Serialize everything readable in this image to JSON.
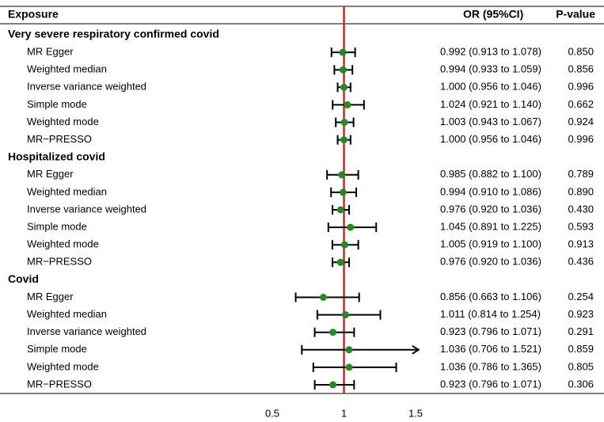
{
  "chart_data": {
    "type": "forest",
    "headers": {
      "label": "Exposure",
      "estimate": "OR (95%CI)",
      "p": "P-value"
    },
    "xlim": [
      0.5,
      1.5
    ],
    "xticks": [
      0.5,
      1,
      1.5
    ],
    "ref_line": 1,
    "point_color": "#228b22",
    "ref_color": "#e0201b",
    "groups": [
      {
        "name": "Very severe respiratory confirmed covid",
        "rows": [
          {
            "label": "MR Egger",
            "or": 0.992,
            "lo": 0.913,
            "hi": 1.078,
            "ci_label": "0.992 (0.913 to 1.078)",
            "p": "0.850"
          },
          {
            "label": "Weighted median",
            "or": 0.994,
            "lo": 0.933,
            "hi": 1.059,
            "ci_label": "0.994 (0.933 to 1.059)",
            "p": "0.856"
          },
          {
            "label": "Inverse variance weighted",
            "or": 1.0,
            "lo": 0.956,
            "hi": 1.046,
            "ci_label": "1.000 (0.956 to 1.046)",
            "p": "0.996"
          },
          {
            "label": "Simple mode",
            "or": 1.024,
            "lo": 0.921,
            "hi": 1.14,
            "ci_label": "1.024 (0.921 to 1.140)",
            "p": "0.662"
          },
          {
            "label": "Weighted mode",
            "or": 1.003,
            "lo": 0.943,
            "hi": 1.067,
            "ci_label": "1.003 (0.943 to 1.067)",
            "p": "0.924"
          },
          {
            "label": "MR−PRESSO",
            "or": 1.0,
            "lo": 0.956,
            "hi": 1.046,
            "ci_label": "1.000 (0.956 to 1.046)",
            "p": "0.996"
          }
        ]
      },
      {
        "name": "Hospitalized covid",
        "rows": [
          {
            "label": "MR Egger",
            "or": 0.985,
            "lo": 0.882,
            "hi": 1.1,
            "ci_label": "0.985 (0.882 to 1.100)",
            "p": "0.789"
          },
          {
            "label": "Weighted median",
            "or": 0.994,
            "lo": 0.91,
            "hi": 1.086,
            "ci_label": "0.994 (0.910 to 1.086)",
            "p": "0.890"
          },
          {
            "label": "Inverse variance weighted",
            "or": 0.976,
            "lo": 0.92,
            "hi": 1.036,
            "ci_label": "0.976 (0.920 to 1.036)",
            "p": "0.430"
          },
          {
            "label": "Simple mode",
            "or": 1.045,
            "lo": 0.891,
            "hi": 1.225,
            "ci_label": "1.045 (0.891 to 1.225)",
            "p": "0.593"
          },
          {
            "label": "Weighted mode",
            "or": 1.005,
            "lo": 0.919,
            "hi": 1.1,
            "ci_label": "1.005 (0.919 to 1.100)",
            "p": "0.913"
          },
          {
            "label": "MR−PRESSO",
            "or": 0.976,
            "lo": 0.92,
            "hi": 1.036,
            "ci_label": "0.976 (0.920 to 1.036)",
            "p": "0.436"
          }
        ]
      },
      {
        "name": "Covid",
        "rows": [
          {
            "label": "MR Egger",
            "or": 0.856,
            "lo": 0.663,
            "hi": 1.106,
            "ci_label": "0.856 (0.663 to 1.106)",
            "p": "0.254"
          },
          {
            "label": "Weighted median",
            "or": 1.011,
            "lo": 0.814,
            "hi": 1.254,
            "ci_label": "1.011 (0.814 to 1.254)",
            "p": "0.923"
          },
          {
            "label": "Inverse variance weighted",
            "or": 0.923,
            "lo": 0.796,
            "hi": 1.071,
            "ci_label": "0.923 (0.796 to 1.071)",
            "p": "0.291"
          },
          {
            "label": "Simple mode",
            "or": 1.036,
            "lo": 0.706,
            "hi": 1.521,
            "ci_label": "1.036 (0.706 to 1.521)",
            "p": "0.859"
          },
          {
            "label": "Weighted mode",
            "or": 1.036,
            "lo": 0.786,
            "hi": 1.365,
            "ci_label": "1.036 (0.786 to 1.365)",
            "p": "0.805"
          },
          {
            "label": "MR−PRESSO",
            "or": 0.923,
            "lo": 0.796,
            "hi": 1.071,
            "ci_label": "0.923 (0.796 to 1.071)",
            "p": "0.306"
          }
        ]
      }
    ]
  }
}
